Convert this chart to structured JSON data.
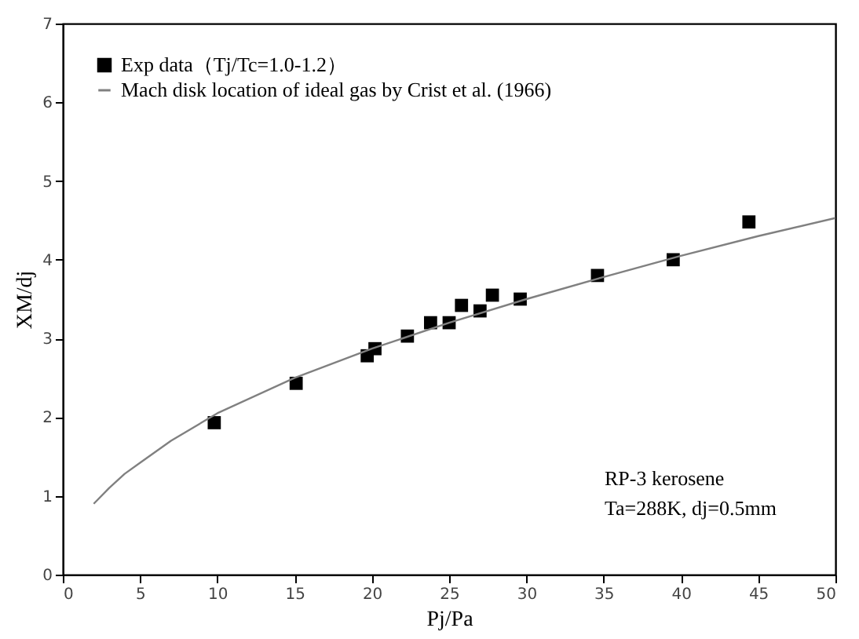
{
  "chart_data": {
    "type": "scatter",
    "xlabel": "Pj/Pa",
    "ylabel": "XM/dj",
    "xlim": [
      0,
      50
    ],
    "ylim": [
      0,
      7
    ],
    "xticks": [
      0,
      5,
      10,
      15,
      20,
      25,
      30,
      35,
      40,
      45,
      50
    ],
    "yticks": [
      0,
      1,
      2,
      3,
      4,
      5,
      6,
      7
    ],
    "grid": false,
    "legend": "top left",
    "series": [
      {
        "name": "Exp data（Tj/Tc=1.0-1.2）",
        "type": "scatter",
        "marker": "square",
        "color": "#000000",
        "x": [
          9.8,
          15.1,
          19.7,
          20.2,
          22.3,
          23.8,
          25.0,
          25.8,
          27.0,
          27.8,
          29.6,
          34.6,
          39.5,
          44.4
        ],
        "values": [
          1.93,
          2.43,
          2.78,
          2.87,
          3.03,
          3.2,
          3.2,
          3.42,
          3.35,
          3.55,
          3.5,
          3.8,
          4.0,
          4.48
        ]
      },
      {
        "name": "Mach disk location of ideal gas by Crist et al. (1966)",
        "type": "line",
        "line_style": "solid",
        "color": "#808080",
        "x": [
          2,
          3,
          4,
          5,
          7,
          10,
          15,
          20,
          25,
          30,
          35,
          40,
          45,
          50
        ],
        "values": [
          0.9,
          1.1,
          1.28,
          1.42,
          1.7,
          2.05,
          2.5,
          2.87,
          3.2,
          3.5,
          3.78,
          4.05,
          4.3,
          4.53
        ]
      }
    ],
    "annotations": [
      "RP-3 kerosene",
      "Ta=288K, dj=0.5mm"
    ]
  }
}
